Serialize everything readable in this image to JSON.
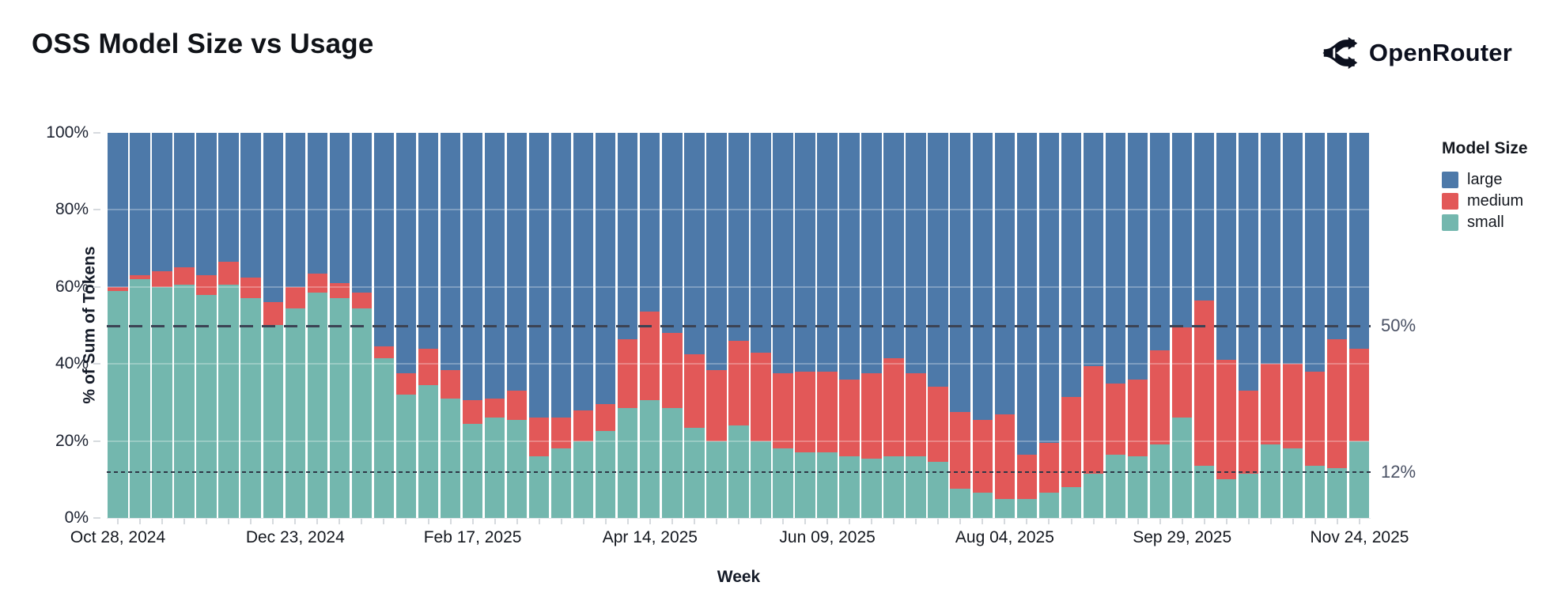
{
  "header": {
    "title": "OSS Model Size vs Usage",
    "brand": "OpenRouter"
  },
  "chart_data": {
    "type": "bar",
    "stacked": true,
    "normalized": "percent",
    "title": "OSS Model Size vs Usage",
    "xlabel": "Week",
    "ylabel": "% of Sum of Tokens",
    "ylim": [
      0,
      100
    ],
    "grid": "subtle horizontal at 20/40/60/80",
    "y_ticks": [
      {
        "value": 0,
        "label": "0%"
      },
      {
        "value": 20,
        "label": "20%"
      },
      {
        "value": 40,
        "label": "40%"
      },
      {
        "value": 60,
        "label": "60%"
      },
      {
        "value": 80,
        "label": "80%"
      },
      {
        "value": 100,
        "label": "100%"
      }
    ],
    "n_weeks": 57,
    "x_tick_indices": [
      0,
      8,
      16,
      24,
      32,
      40,
      48,
      56
    ],
    "x_tick_labels": [
      "Oct 28, 2024",
      "Dec 23, 2024",
      "Feb 17, 2025",
      "Apr 14, 2025",
      "Jun 09, 2025",
      "Aug 04, 2025",
      "Sep 29, 2025",
      "Nov 24, 2025"
    ],
    "reference_lines": [
      {
        "value": 50,
        "label": "50%",
        "style": "dashed"
      },
      {
        "value": 12,
        "label": "12%",
        "style": "dotted"
      }
    ],
    "legend": {
      "title": "Model Size",
      "position": "right",
      "entries": [
        {
          "name": "large",
          "color": "#4d79a9"
        },
        {
          "name": "medium",
          "color": "#e25858"
        },
        {
          "name": "small",
          "color": "#73b7ae"
        }
      ]
    },
    "series": [
      {
        "name": "small",
        "color": "#73b7ae",
        "values": [
          59,
          62,
          60,
          60.5,
          58,
          60.5,
          57,
          50,
          54.5,
          58.5,
          57,
          54.5,
          41.5,
          32,
          34.5,
          31,
          24.5,
          26,
          25.5,
          16,
          18,
          20,
          22.5,
          28.5,
          30.5,
          28.5,
          23.5,
          20,
          24,
          20,
          18,
          17,
          17,
          16,
          15.5,
          16,
          16,
          14.5,
          7.5,
          6.5,
          5,
          5,
          6.5,
          8,
          11.5,
          16.5,
          16,
          19,
          26,
          13.5,
          10,
          11.5,
          19,
          18,
          13.5,
          13,
          20
        ]
      },
      {
        "name": "medium",
        "color": "#e25858",
        "values": [
          1,
          1,
          4,
          4.5,
          5,
          6,
          5.5,
          6,
          5.5,
          5,
          4,
          4,
          3,
          5.5,
          9.5,
          7.5,
          6,
          5,
          7.5,
          10,
          8,
          8,
          7,
          18,
          23,
          19.5,
          19,
          18.5,
          22,
          23,
          19.5,
          21,
          21,
          20,
          22,
          25.5,
          21.5,
          19.5,
          20,
          19,
          22,
          11.5,
          13,
          23.5,
          28,
          18.5,
          20,
          24.5,
          23.5,
          43,
          31,
          21.5,
          21,
          22,
          24.5,
          33.5,
          24
        ]
      },
      {
        "name": "large",
        "color": "#4d79a9",
        "values": [
          40,
          37,
          36,
          35,
          37,
          33.5,
          37.5,
          44,
          40,
          36.5,
          39,
          41.5,
          55.5,
          62.5,
          56,
          61.5,
          69.5,
          69,
          67,
          74,
          74,
          72,
          70.5,
          53.5,
          46.5,
          52,
          57.5,
          61.5,
          54,
          57,
          62.5,
          62,
          62,
          64,
          62.5,
          58.5,
          62.5,
          66,
          72.5,
          74.5,
          73,
          83.5,
          80.5,
          68.5,
          60.5,
          65,
          64,
          56.5,
          50.5,
          43.5,
          59,
          67,
          60,
          60,
          62,
          53.5,
          56
        ]
      }
    ]
  }
}
